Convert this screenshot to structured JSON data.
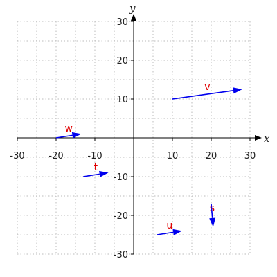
{
  "chart_data": {
    "type": "vector-field",
    "xlabel": "x",
    "ylabel": "y",
    "xlim": [
      -30,
      30
    ],
    "ylim": [
      -30,
      30
    ],
    "grid": true,
    "x_ticks": [
      -30,
      -20,
      -10,
      10,
      20,
      30
    ],
    "y_ticks": [
      -30,
      -20,
      -10,
      10,
      20,
      30
    ],
    "x_tick_labels": [
      "-30",
      "-20",
      "-10",
      "10",
      "20",
      "30"
    ],
    "y_tick_labels": [
      "-30",
      "-20",
      "-10",
      "10",
      "20",
      "30"
    ],
    "vectors": [
      {
        "label": "v",
        "start": [
          10,
          10
        ],
        "end": [
          28,
          12.5
        ]
      },
      {
        "label": "w",
        "start": [
          -20,
          0
        ],
        "end": [
          -13.5,
          1
        ]
      },
      {
        "label": "t",
        "start": [
          -13,
          -10
        ],
        "end": [
          -6.5,
          -9
        ]
      },
      {
        "label": "s",
        "start": [
          20,
          -17
        ],
        "end": [
          20.5,
          -23
        ]
      },
      {
        "label": "u",
        "start": [
          6,
          -25
        ],
        "end": [
          12.5,
          -24
        ]
      }
    ],
    "colors": {
      "vector": "#0000ee",
      "label": "#e00000",
      "grid": "#bbbbbb",
      "axis": "#000000"
    }
  }
}
